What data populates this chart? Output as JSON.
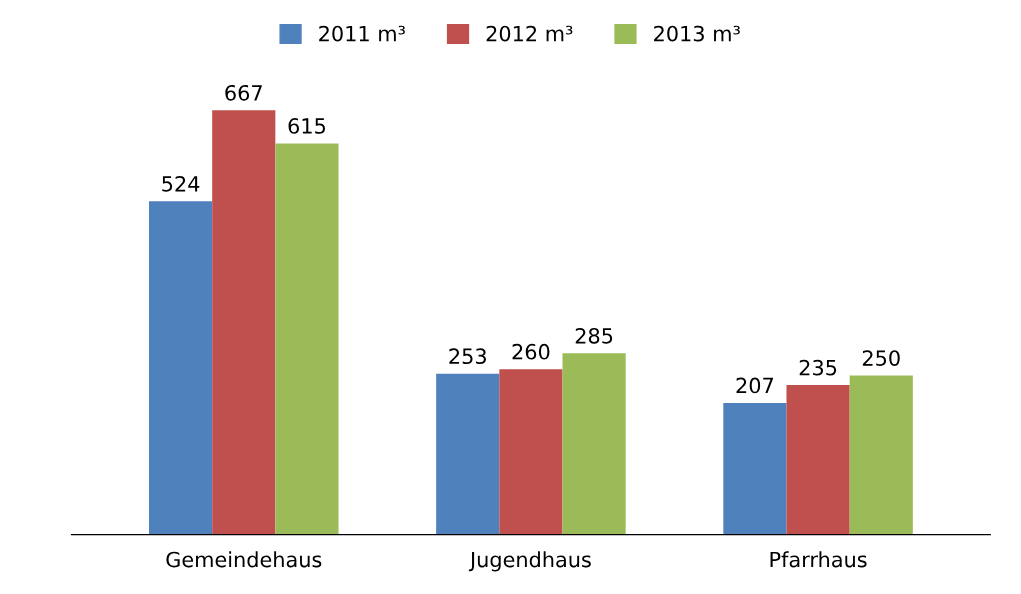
{
  "chart_data": {
    "type": "bar",
    "categories": [
      "Gemeindehaus",
      "Jugendhaus",
      "Pfarrhaus"
    ],
    "series": [
      {
        "name": "2011 m³",
        "color": "#4f81bd",
        "values": [
          524,
          253,
          207
        ]
      },
      {
        "name": "2012 m³",
        "color": "#c0504d",
        "values": [
          667,
          260,
          235
        ]
      },
      {
        "name": "2013 m³",
        "color": "#9bbb59",
        "values": [
          615,
          285,
          250
        ]
      }
    ],
    "data_labels": true,
    "legend": "top",
    "grid": false
  }
}
